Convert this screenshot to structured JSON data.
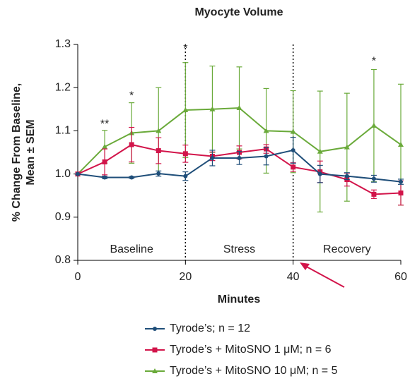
{
  "chart_data": {
    "type": "line",
    "title": "Myocyte Volume",
    "xlabel": "Minutes",
    "ylabel": [
      "% Change From Baseline,",
      "Mean ± SEM"
    ],
    "x": [
      0,
      5,
      10,
      15,
      20,
      25,
      30,
      35,
      40,
      45,
      50,
      55,
      60
    ],
    "series": [
      {
        "name": "Tyrode’s; n = 12",
        "color": "#1f4e79",
        "marker": "circle",
        "values": [
          1.0,
          0.992,
          0.992,
          1.001,
          0.995,
          1.037,
          1.037,
          1.041,
          1.055,
          1.0,
          0.995,
          0.989,
          0.982
        ],
        "errors": [
          0,
          0.003,
          0.002,
          0.006,
          0.01,
          0.018,
          0.015,
          0.02,
          0.03,
          0.02,
          0.008,
          0.008,
          0.006
        ]
      },
      {
        "name": "Tyrode’s + MitoSNO 1 μM; n = 6",
        "color": "#d2144a",
        "marker": "square",
        "values": [
          1.0,
          1.028,
          1.068,
          1.054,
          1.047,
          1.041,
          1.05,
          1.058,
          1.016,
          1.005,
          0.987,
          0.953,
          0.956
        ],
        "errors": [
          0,
          0.03,
          0.04,
          0.03,
          0.02,
          0.01,
          0.015,
          0.01,
          0.01,
          0.025,
          0.015,
          0.01,
          0.028
        ]
      },
      {
        "name": "Tyrode’s + MitoSNO 10 μM; n = 5",
        "color": "#6aaa3a",
        "marker": "triangle",
        "values": [
          1.0,
          1.063,
          1.095,
          1.1,
          1.148,
          1.15,
          1.153,
          1.1,
          1.098,
          1.052,
          1.062,
          1.112,
          1.068
        ],
        "errors": [
          0,
          0.038,
          0.07,
          0.1,
          0.11,
          0.1,
          0.095,
          0.098,
          0.095,
          0.14,
          0.125,
          0.13,
          0.14
        ]
      }
    ],
    "xlim": [
      0,
      60
    ],
    "xticks": [
      0,
      20,
      40,
      60
    ],
    "ylim": [
      0.8,
      1.3
    ],
    "yticks": [
      0.8,
      0.9,
      {
        "value": 1,
        "label": "1.0"
      },
      1.1,
      1.2,
      1.3
    ],
    "vlines": [
      20,
      40
    ],
    "phases": [
      {
        "label": "Baseline",
        "start": 0,
        "end": 20
      },
      {
        "label": "Stress",
        "start": 20,
        "end": 40
      },
      {
        "label": "Recovery",
        "start": 40,
        "end": 60
      }
    ],
    "annotations": [
      {
        "text": "**",
        "x": 5,
        "y": 1.115
      },
      {
        "text": "*",
        "x": 10,
        "y": 1.18
      },
      {
        "text": "*",
        "x": 20,
        "y": 1.29
      },
      {
        "text": "*",
        "x": 55,
        "y": 1.26
      }
    ]
  }
}
